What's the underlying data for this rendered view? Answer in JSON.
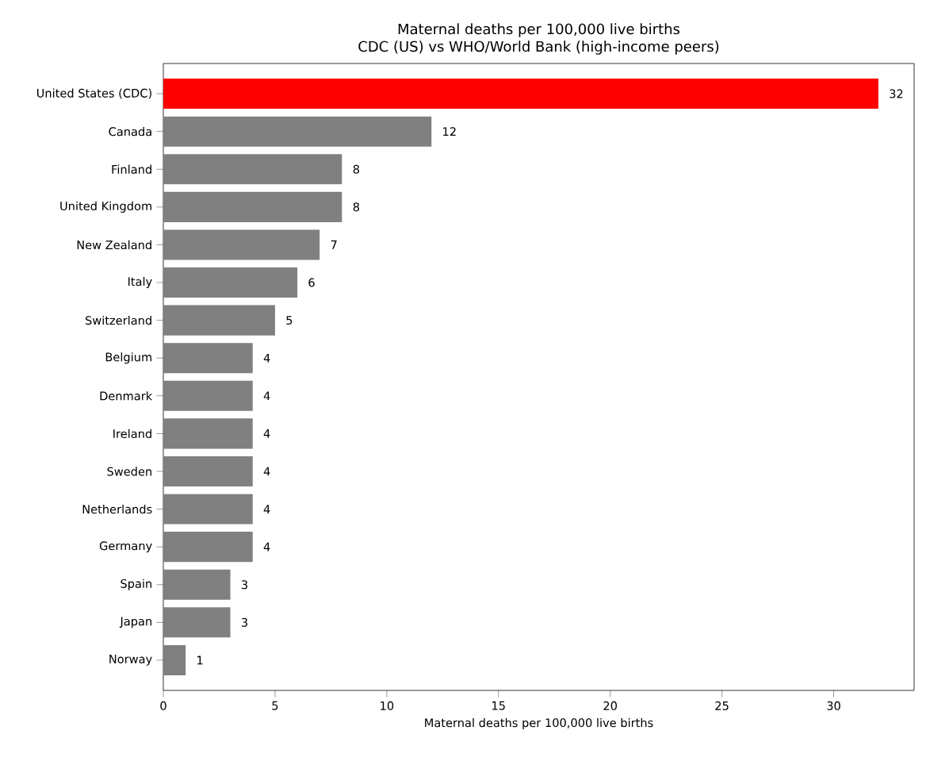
{
  "chart_data": {
    "type": "bar",
    "orientation": "horizontal",
    "title": "Maternal deaths per 100,000 live births",
    "subtitle": "CDC (US) vs WHO/World Bank (high-income peers)",
    "xlabel": "Maternal deaths per 100,000 live births",
    "categories": [
      "United States (CDC)",
      "Canada",
      "Finland",
      "United Kingdom",
      "New Zealand",
      "Italy",
      "Switzerland",
      "Belgium",
      "Denmark",
      "Ireland",
      "Sweden",
      "Netherlands",
      "Germany",
      "Spain",
      "Japan",
      "Norway"
    ],
    "values": [
      32,
      12,
      8,
      8,
      7,
      6,
      5,
      4,
      4,
      4,
      4,
      4,
      4,
      3,
      3,
      1
    ],
    "colors": [
      "#ff0000",
      "#808080",
      "#808080",
      "#808080",
      "#808080",
      "#808080",
      "#808080",
      "#808080",
      "#808080",
      "#808080",
      "#808080",
      "#808080",
      "#808080",
      "#808080",
      "#808080",
      "#808080"
    ],
    "xlim": [
      0,
      33.6
    ],
    "xticks": [
      0,
      5,
      10,
      15,
      20,
      25,
      30
    ],
    "data_labels": true
  }
}
